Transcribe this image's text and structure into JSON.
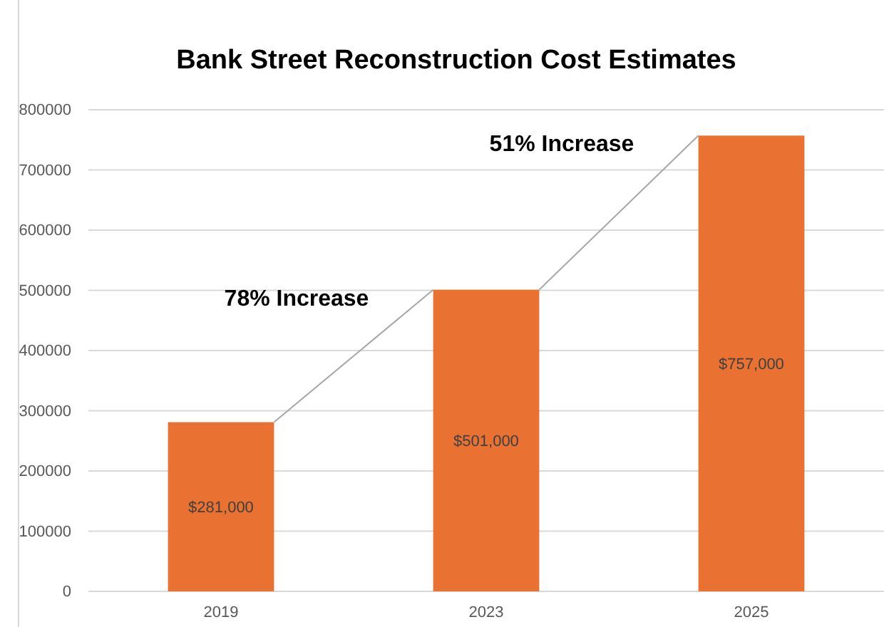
{
  "chart_data": {
    "type": "bar",
    "title": "Bank Street Reconstruction Cost Estimates",
    "categories": [
      "2019",
      "2023",
      "2025"
    ],
    "values": [
      281000,
      501000,
      757000
    ],
    "value_labels": [
      "$281,000",
      "$501,000",
      "$757,000"
    ],
    "color": "#e97132",
    "ylim": [
      0,
      800000
    ],
    "yticks": [
      0,
      100000,
      200000,
      300000,
      400000,
      500000,
      600000,
      700000,
      800000
    ],
    "grid": "y",
    "annotations": [
      "78% Increase",
      "51% Increase"
    ]
  }
}
